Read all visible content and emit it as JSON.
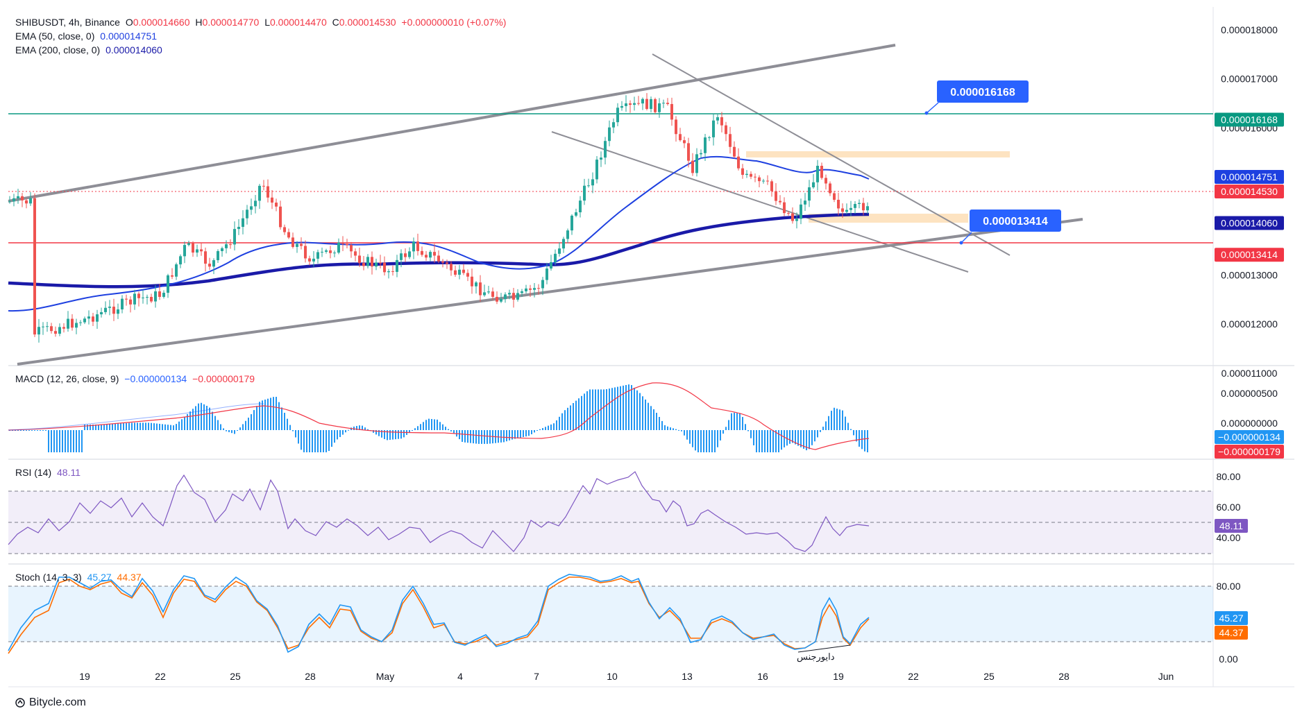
{
  "symbol": {
    "pair": "SHIBUSDT, 4h, Binance",
    "o_label": "O",
    "o": "0.000014660",
    "h_label": "H",
    "h": "0.000014770",
    "l_label": "L",
    "l": "0.000014470",
    "c_label": "C",
    "c": "0.000014530",
    "change": "+0.000000010 (+0.07%)"
  },
  "ema50": {
    "label": "EMA (50, close, 0)",
    "value": "0.000014751",
    "color": "#1e40e0"
  },
  "ema200": {
    "label": "EMA (200, close, 0)",
    "value": "0.000014060",
    "color": "#1a1aa8"
  },
  "macd": {
    "label": "MACD (12, 26, close, 9)",
    "v1": "−0.000000134",
    "v2": "−0.000000179"
  },
  "rsi": {
    "label": "RSI (14)",
    "value": "48.11"
  },
  "stoch": {
    "label": "Stoch (14, 3, 3)",
    "k": "45.27",
    "d": "44.37"
  },
  "footer": {
    "brand": "Bitycle.com"
  },
  "annotation_text": "دایورجنس",
  "callouts": {
    "upper": "0.000016168",
    "lower": "0.000013414"
  },
  "colors": {
    "up": "#26a69a",
    "down": "#ef5350",
    "green_line": "#089981",
    "red_line": "#f23645",
    "channel": "#8e8e96",
    "zone": "#fde3c1"
  },
  "chart_data": [
    {
      "type": "candlestick",
      "title": "SHIBUSDT, 4h, Binance",
      "x_ticks": [
        "19",
        "22",
        "25",
        "28",
        "May",
        "4",
        "7",
        "10",
        "13",
        "16",
        "19",
        "22",
        "25",
        "28",
        "Jun"
      ],
      "y_ticks": [
        "0.000018000",
        "0.000017000",
        "0.000016000",
        "0.000015000",
        "0.000013000",
        "0.000012000",
        "0.000011000"
      ],
      "ylim": [
        1.08e-05,
        1.81e-05
      ],
      "price_labels": [
        {
          "text": "0.000016168",
          "value": 1.6168e-05,
          "color": "#089981"
        },
        {
          "text": "0.000014751",
          "value": 1.4751e-05,
          "color": "#1e40e0"
        },
        {
          "text": "0.000014530",
          "value": 1.453e-05,
          "color": "#f23645"
        },
        {
          "text": "0.000014060",
          "value": 1.406e-05,
          "color": "#1a1aa8"
        },
        {
          "text": "0.000013414",
          "value": 1.3414e-05,
          "color": "#f23645"
        }
      ],
      "horizontal_levels": [
        1.6168e-05,
        1.3414e-05
      ],
      "close_path_points": [
        [
          "Apr 17",
          1.18e-05
        ],
        [
          "Apr 19",
          1.21e-05
        ],
        [
          "Apr 21",
          1.25e-05
        ],
        [
          "Apr 22",
          1.26e-05
        ],
        [
          "Apr 23",
          1.36e-05
        ],
        [
          "Apr 24",
          1.32e-05
        ],
        [
          "Apr 25",
          1.39e-05
        ],
        [
          "Apr 26",
          1.49e-05
        ],
        [
          "Apr 27",
          1.38e-05
        ],
        [
          "Apr 28",
          1.33e-05
        ],
        [
          "Apr 29",
          1.36e-05
        ],
        [
          "Apr 30",
          1.33e-05
        ],
        [
          "May 1",
          1.31e-05
        ],
        [
          "May 2",
          1.36e-05
        ],
        [
          "May 3",
          1.33e-05
        ],
        [
          "May 4",
          1.29e-05
        ],
        [
          "May 5",
          1.26e-05
        ],
        [
          "May 6",
          1.25e-05
        ],
        [
          "May 7",
          1.28e-05
        ],
        [
          "May 8",
          1.39e-05
        ],
        [
          "May 9",
          1.5e-05
        ],
        [
          "May 10",
          1.63e-05
        ],
        [
          "May 11",
          1.65e-05
        ],
        [
          "May 12",
          1.64e-05
        ],
        [
          "May 13",
          1.52e-05
        ],
        [
          "May 14",
          1.63e-05
        ],
        [
          "May 15",
          1.5e-05
        ],
        [
          "May 16",
          1.48e-05
        ],
        [
          "May 17",
          1.41e-05
        ],
        [
          "May 18",
          1.52e-05
        ],
        [
          "May 19",
          1.42e-05
        ],
        [
          "May 20",
          1.45e-05
        ]
      ]
    },
    {
      "type": "bar",
      "title": "MACD (12, 26, close, 9)",
      "y_ticks": [
        "0.000000500",
        "0.000000000"
      ],
      "last_values": [
        "−0.000000134",
        "−0.000000179"
      ]
    },
    {
      "type": "line",
      "title": "RSI (14)",
      "y_ticks": [
        "80.00",
        "60.00",
        "40.00"
      ],
      "band": [
        30,
        70
      ],
      "last_value": 48.11
    },
    {
      "type": "line",
      "title": "Stoch (14, 3, 3)",
      "y_ticks": [
        "80.00",
        "0.00"
      ],
      "band": [
        20,
        80
      ],
      "series": [
        {
          "name": "%K",
          "last": 45.27
        },
        {
          "name": "%D",
          "last": 44.37
        }
      ]
    }
  ]
}
